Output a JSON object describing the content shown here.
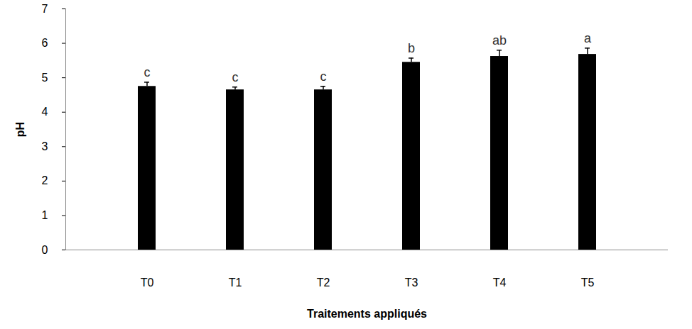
{
  "chart_data": {
    "type": "bar",
    "x_label": "Traitements appliqués",
    "y_label": "pH",
    "categories": [
      "T0",
      "T1",
      "T2",
      "T3",
      "T4",
      "T5"
    ],
    "values": [
      4.75,
      4.65,
      4.65,
      5.45,
      5.62,
      5.68
    ],
    "errors": [
      0.12,
      0.08,
      0.1,
      0.12,
      0.18,
      0.18
    ],
    "annotations": [
      "c",
      "c",
      "c",
      "b",
      "ab",
      "a"
    ],
    "color": "#000000",
    "ylim": [
      0,
      7
    ],
    "yticks": [
      0,
      1,
      2,
      3,
      4,
      5,
      6,
      7
    ],
    "grid": false
  }
}
